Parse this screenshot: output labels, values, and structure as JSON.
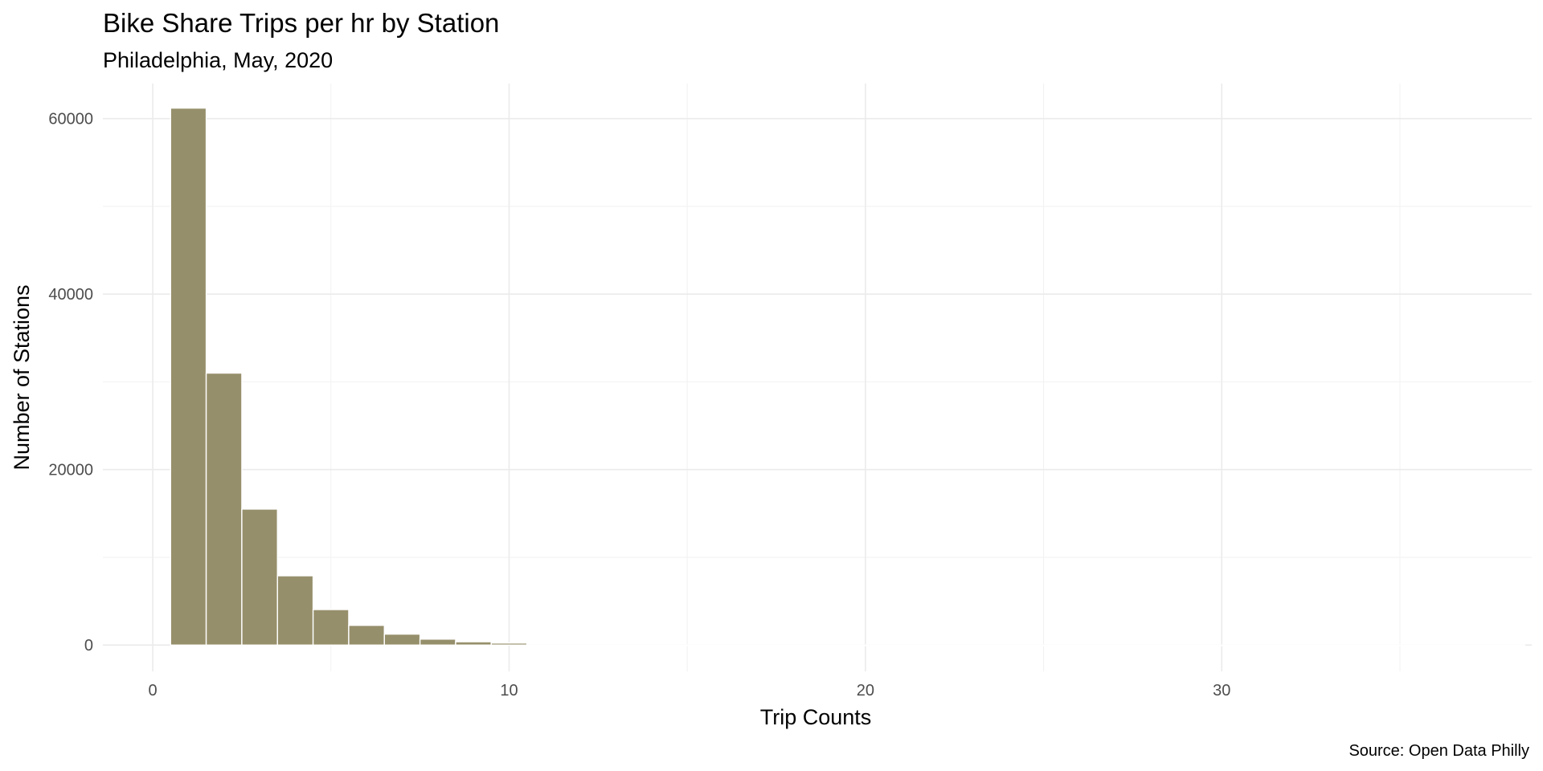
{
  "chart_data": {
    "type": "bar",
    "title": "Bike Share Trips per hr by Station",
    "subtitle": "Philadelphia, May, 2020",
    "xlabel": "Trip Counts",
    "ylabel": "Number of Stations",
    "caption": "Source: Open Data Philly",
    "bar_color": "#968f6b",
    "bar_outline": "#ffffff",
    "xlim": [
      -1.4,
      38.7
    ],
    "ylim": [
      -3000,
      64000
    ],
    "x_ticks": [
      0,
      10,
      20,
      30
    ],
    "y_ticks": [
      0,
      20000,
      40000,
      60000
    ],
    "grid": true,
    "bin_width": 1,
    "x": [
      1,
      2,
      3,
      4,
      5,
      6,
      7,
      8,
      9,
      10,
      11,
      12,
      13,
      14,
      15,
      16,
      17,
      18,
      19,
      20,
      21,
      22,
      23,
      24,
      25,
      26,
      27,
      28,
      29,
      30,
      31,
      32,
      33,
      34,
      35,
      36,
      37,
      38
    ],
    "values": [
      61200,
      31000,
      15500,
      7900,
      4050,
      2250,
      1250,
      680,
      380,
      230,
      0,
      0,
      0,
      0,
      0,
      0,
      0,
      0,
      0,
      0,
      0,
      0,
      0,
      0,
      0,
      0,
      0,
      0,
      0,
      0,
      0,
      0,
      0,
      0,
      0,
      0,
      0,
      2
    ]
  }
}
